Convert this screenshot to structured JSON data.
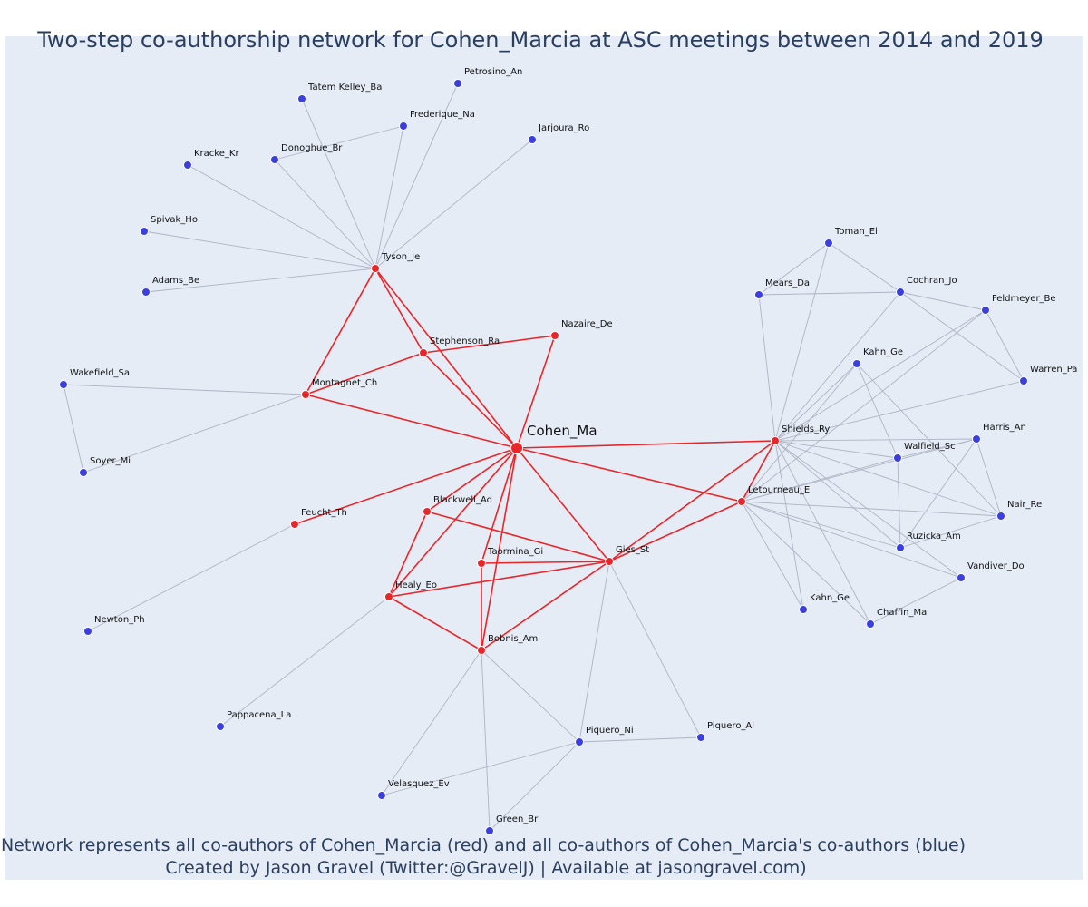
{
  "title": "Two-step co-authorship network for Cohen_Marcia at ASC meetings between 2014 and 2019",
  "caption_line1": "Network represents all co-authors of Cohen_Marcia (red) and all co-authors of Cohen_Marcia's co-authors (blue)",
  "caption_line2": "Created by Jason Gravel (Twitter:@GravelJ) | Available at jasongravel.com)",
  "colors": {
    "background": "#e5ecf6",
    "first_degree_node": "#e8262a",
    "second_degree_node": "#3b3fe0",
    "first_degree_edge": "#e8262a",
    "second_degree_edge": "#aeb4c4"
  },
  "network": {
    "nodes": [
      {
        "id": "cohen",
        "label": "Cohen_Ma",
        "group": "center"
      },
      {
        "id": "tyson",
        "label": "Tyson_Je",
        "group": "first"
      },
      {
        "id": "stephenson",
        "label": "Stephenson_Ra",
        "group": "first"
      },
      {
        "id": "nazaire",
        "label": "Nazaire_De",
        "group": "first"
      },
      {
        "id": "montagnet",
        "label": "Montagnet_Ch",
        "group": "first"
      },
      {
        "id": "feucht",
        "label": "Feucht_Th",
        "group": "first"
      },
      {
        "id": "blackwell",
        "label": "Blackwell_Ad",
        "group": "first"
      },
      {
        "id": "taormina",
        "label": "Taormina_Gi",
        "group": "first"
      },
      {
        "id": "gies",
        "label": "Gies_St",
        "group": "first"
      },
      {
        "id": "healy",
        "label": "Healy_Eo",
        "group": "first"
      },
      {
        "id": "bobnis",
        "label": "Bobnis_Am",
        "group": "first"
      },
      {
        "id": "shields",
        "label": "Shields_Ry",
        "group": "first"
      },
      {
        "id": "letourneau",
        "label": "Letourneau_El",
        "group": "first"
      },
      {
        "id": "petrosino",
        "label": "Petrosino_An",
        "group": "second"
      },
      {
        "id": "tatem",
        "label": "Tatem Kelley_Ba",
        "group": "second"
      },
      {
        "id": "frederique",
        "label": "Frederique_Na",
        "group": "second"
      },
      {
        "id": "jarjoura",
        "label": "Jarjoura_Ro",
        "group": "second"
      },
      {
        "id": "kracke",
        "label": "Kracke_Kr",
        "group": "second"
      },
      {
        "id": "donoghue",
        "label": "Donoghue_Br",
        "group": "second"
      },
      {
        "id": "spivak",
        "label": "Spivak_Ho",
        "group": "second"
      },
      {
        "id": "adams",
        "label": "Adams_Be",
        "group": "second"
      },
      {
        "id": "wakefield",
        "label": "Wakefield_Sa",
        "group": "second"
      },
      {
        "id": "soyer",
        "label": "Soyer_Mi",
        "group": "second"
      },
      {
        "id": "newton",
        "label": "Newton_Ph",
        "group": "second"
      },
      {
        "id": "pappacena",
        "label": "Pappacena_La",
        "group": "second"
      },
      {
        "id": "velasquez",
        "label": "Velasquez_Ev",
        "group": "second"
      },
      {
        "id": "green",
        "label": "Green_Br",
        "group": "second"
      },
      {
        "id": "piqueroni",
        "label": "Piquero_Ni",
        "group": "second"
      },
      {
        "id": "piqueroal",
        "label": "Piquero_Al",
        "group": "second"
      },
      {
        "id": "toman",
        "label": "Toman_El",
        "group": "second"
      },
      {
        "id": "mears",
        "label": "Mears_Da",
        "group": "second"
      },
      {
        "id": "cochran",
        "label": "Cochran_Jo",
        "group": "second"
      },
      {
        "id": "feldmeyer",
        "label": "Feldmeyer_Be",
        "group": "second"
      },
      {
        "id": "kahn1",
        "label": "Kahn_Ge",
        "group": "second"
      },
      {
        "id": "warren",
        "label": "Warren_Pa",
        "group": "second"
      },
      {
        "id": "harris",
        "label": "Harris_An",
        "group": "second"
      },
      {
        "id": "walfield",
        "label": "Walfield_Sc",
        "group": "second"
      },
      {
        "id": "nair",
        "label": "Nair_Re",
        "group": "second"
      },
      {
        "id": "ruzicka",
        "label": "Ruzicka_Am",
        "group": "second"
      },
      {
        "id": "vandiver",
        "label": "Vandiver_Do",
        "group": "second"
      },
      {
        "id": "kahn2",
        "label": "Kahn_Ge",
        "group": "second"
      },
      {
        "id": "chaffin",
        "label": "Chaffin_Ma",
        "group": "second"
      }
    ],
    "edges": [
      [
        "cohen",
        "tyson"
      ],
      [
        "cohen",
        "stephenson"
      ],
      [
        "cohen",
        "nazaire"
      ],
      [
        "cohen",
        "montagnet"
      ],
      [
        "cohen",
        "feucht"
      ],
      [
        "cohen",
        "blackwell"
      ],
      [
        "cohen",
        "taormina"
      ],
      [
        "cohen",
        "gies"
      ],
      [
        "cohen",
        "healy"
      ],
      [
        "cohen",
        "bobnis"
      ],
      [
        "cohen",
        "shields"
      ],
      [
        "cohen",
        "letourneau"
      ],
      [
        "tyson",
        "stephenson"
      ],
      [
        "tyson",
        "montagnet"
      ],
      [
        "stephenson",
        "nazaire"
      ],
      [
        "stephenson",
        "montagnet"
      ],
      [
        "blackwell",
        "gies"
      ],
      [
        "blackwell",
        "healy"
      ],
      [
        "taormina",
        "gies"
      ],
      [
        "taormina",
        "bobnis"
      ],
      [
        "healy",
        "gies"
      ],
      [
        "healy",
        "bobnis"
      ],
      [
        "bobnis",
        "gies"
      ],
      [
        "gies",
        "shields"
      ],
      [
        "gies",
        "letourneau"
      ],
      [
        "shields",
        "letourneau"
      ],
      [
        "tyson",
        "petrosino"
      ],
      [
        "tyson",
        "tatem"
      ],
      [
        "tyson",
        "frederique"
      ],
      [
        "tyson",
        "jarjoura"
      ],
      [
        "tyson",
        "kracke"
      ],
      [
        "tyson",
        "donoghue"
      ],
      [
        "tyson",
        "spivak"
      ],
      [
        "tyson",
        "adams"
      ],
      [
        "donoghue",
        "frederique"
      ],
      [
        "montagnet",
        "wakefield"
      ],
      [
        "montagnet",
        "soyer"
      ],
      [
        "wakefield",
        "soyer"
      ],
      [
        "feucht",
        "newton"
      ],
      [
        "healy",
        "pappacena"
      ],
      [
        "bobnis",
        "velasquez"
      ],
      [
        "bobnis",
        "green"
      ],
      [
        "bobnis",
        "piqueroni"
      ],
      [
        "gies",
        "piqueroni"
      ],
      [
        "gies",
        "piqueroal"
      ],
      [
        "piqueroni",
        "velasquez"
      ],
      [
        "piqueroni",
        "green"
      ],
      [
        "piqueroni",
        "piqueroal"
      ],
      [
        "shields",
        "toman"
      ],
      [
        "shields",
        "mears"
      ],
      [
        "shields",
        "cochran"
      ],
      [
        "shields",
        "feldmeyer"
      ],
      [
        "shields",
        "kahn1"
      ],
      [
        "shields",
        "warren"
      ],
      [
        "shields",
        "harris"
      ],
      [
        "shields",
        "walfield"
      ],
      [
        "shields",
        "nair"
      ],
      [
        "shields",
        "ruzicka"
      ],
      [
        "shields",
        "vandiver"
      ],
      [
        "shields",
        "kahn2"
      ],
      [
        "shields",
        "chaffin"
      ],
      [
        "toman",
        "mears"
      ],
      [
        "toman",
        "cochran"
      ],
      [
        "mears",
        "cochran"
      ],
      [
        "cochran",
        "feldmeyer"
      ],
      [
        "cochran",
        "warren"
      ],
      [
        "feldmeyer",
        "warren"
      ],
      [
        "kahn1",
        "walfield"
      ],
      [
        "kahn1",
        "nair"
      ],
      [
        "kahn1",
        "letourneau"
      ],
      [
        "letourneau",
        "harris"
      ],
      [
        "letourneau",
        "walfield"
      ],
      [
        "letourneau",
        "nair"
      ],
      [
        "letourneau",
        "ruzicka"
      ],
      [
        "letourneau",
        "vandiver"
      ],
      [
        "letourneau",
        "kahn2"
      ],
      [
        "letourneau",
        "chaffin"
      ],
      [
        "letourneau",
        "feldmeyer"
      ],
      [
        "harris",
        "walfield"
      ],
      [
        "harris",
        "nair"
      ],
      [
        "harris",
        "ruzicka"
      ],
      [
        "walfield",
        "ruzicka"
      ],
      [
        "nair",
        "ruzicka"
      ],
      [
        "vandiver",
        "chaffin"
      ]
    ]
  }
}
